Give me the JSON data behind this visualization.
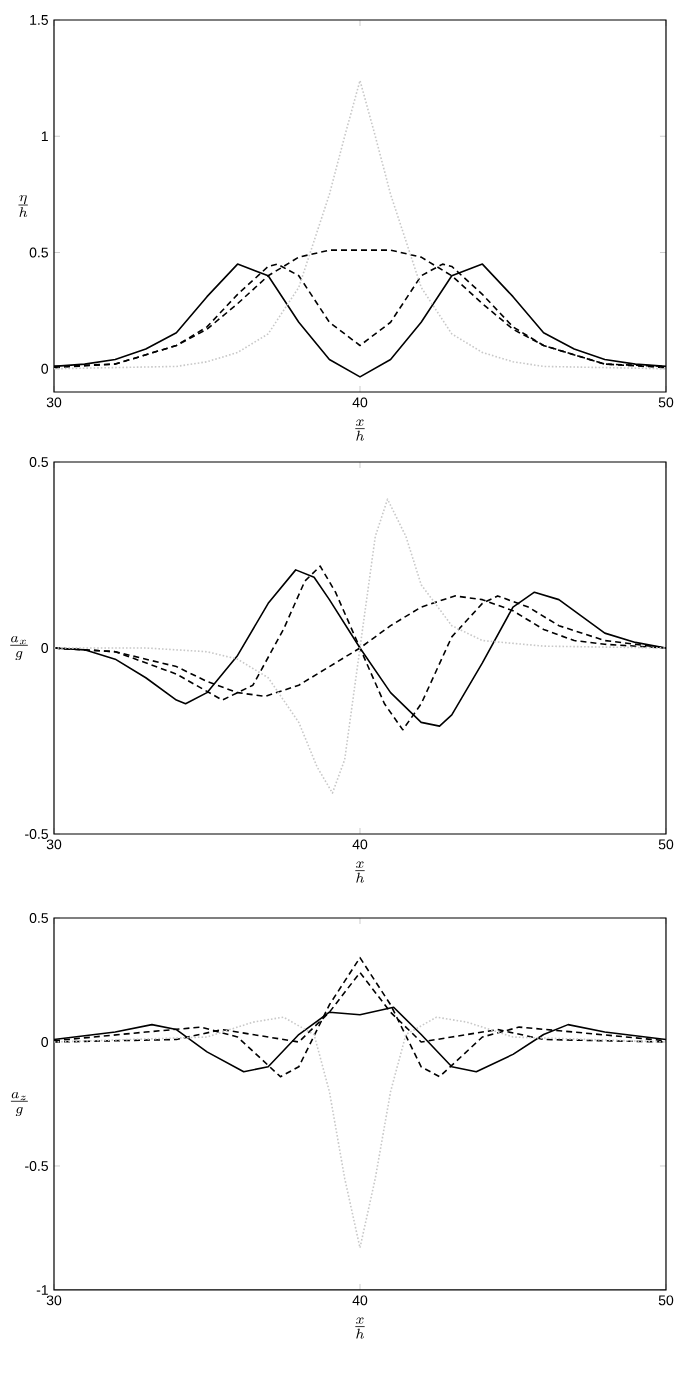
{
  "chart_data": [
    {
      "type": "line",
      "xlabel": "\\frac{x}{h}",
      "ylabel": "\\frac{\\eta}{h}",
      "xlim": [
        30,
        50
      ],
      "ylim": [
        -0.1,
        1.5
      ],
      "xticks": [
        30,
        40,
        50
      ],
      "yticks": [
        0,
        0.5,
        1,
        1.5
      ],
      "series": [
        {
          "color": "#000000",
          "line_style": "solid",
          "x": [
            30,
            31,
            32,
            33,
            34,
            35,
            36,
            37,
            38,
            39,
            40,
            41,
            42,
            43,
            44,
            45,
            46,
            47,
            48,
            49,
            50
          ],
          "values": [
            0.01,
            0.02,
            0.04,
            0.085,
            0.155,
            0.31,
            0.45,
            0.4,
            0.2,
            0.04,
            -0.035,
            0.04,
            0.2,
            0.4,
            0.45,
            0.31,
            0.155,
            0.085,
            0.04,
            0.02,
            0.01
          ]
        },
        {
          "color": "#000000",
          "line_style": "dashed",
          "x": [
            30,
            32,
            34,
            35,
            36,
            37,
            37.3,
            38,
            39,
            40,
            41,
            42,
            42.7,
            43,
            44,
            45,
            46,
            48,
            50
          ],
          "values": [
            0.01,
            0.02,
            0.1,
            0.18,
            0.32,
            0.44,
            0.45,
            0.4,
            0.2,
            0.1,
            0.2,
            0.4,
            0.45,
            0.44,
            0.32,
            0.18,
            0.1,
            0.02,
            0.01
          ]
        },
        {
          "color": "#000000",
          "line_style": "dashed",
          "x": [
            30,
            32,
            34,
            35,
            36,
            37,
            38,
            39,
            40,
            41,
            42,
            43,
            44,
            45,
            46,
            48,
            50
          ],
          "values": [
            0.005,
            0.02,
            0.1,
            0.17,
            0.28,
            0.4,
            0.48,
            0.51,
            0.51,
            0.51,
            0.48,
            0.4,
            0.28,
            0.17,
            0.1,
            0.02,
            0.005
          ]
        },
        {
          "color": "#c8c8c8",
          "line_style": "dotted",
          "x": [
            30,
            34,
            35,
            36,
            37,
            38,
            39,
            39.5,
            40,
            40.5,
            41,
            42,
            43,
            44,
            45,
            46,
            50
          ],
          "values": [
            0,
            0.01,
            0.03,
            0.07,
            0.15,
            0.35,
            0.75,
            1.0,
            1.24,
            1.0,
            0.75,
            0.35,
            0.15,
            0.07,
            0.03,
            0.01,
            0
          ]
        }
      ]
    },
    {
      "type": "line",
      "xlabel": "\\frac{x}{h}",
      "ylabel": "\\frac{a_x}{g}",
      "xlim": [
        30,
        50
      ],
      "ylim": [
        -0.5,
        0.5
      ],
      "xticks": [
        30,
        40,
        50
      ],
      "yticks": [
        -0.5,
        0,
        0.5
      ],
      "series": [
        {
          "color": "#000000",
          "line_style": "solid",
          "x": [
            30,
            31,
            32,
            33,
            34,
            34.3,
            35,
            36,
            37,
            37.9,
            38.5,
            39,
            40,
            41,
            42,
            42.6,
            43,
            44,
            45,
            45.7,
            46.5,
            47,
            48,
            49,
            50
          ],
          "values": [
            0,
            -0.005,
            -0.03,
            -0.08,
            -0.14,
            -0.15,
            -0.12,
            -0.02,
            0.12,
            0.21,
            0.19,
            0.13,
            0,
            -0.12,
            -0.2,
            -0.21,
            -0.18,
            -0.04,
            0.11,
            0.15,
            0.13,
            0.1,
            0.04,
            0.015,
            0
          ]
        },
        {
          "color": "#000000",
          "line_style": "dashed",
          "x": [
            30,
            32,
            34,
            35.5,
            36.5,
            37.5,
            38.2,
            38.7,
            39.2,
            40,
            40.8,
            41.4,
            42,
            43,
            44,
            44.5,
            45.5,
            46.5,
            48,
            50
          ],
          "values": [
            0,
            -0.01,
            -0.07,
            -0.14,
            -0.1,
            0.05,
            0.18,
            0.22,
            0.15,
            0,
            -0.15,
            -0.22,
            -0.15,
            0.03,
            0.12,
            0.14,
            0.11,
            0.06,
            0.02,
            0
          ]
        },
        {
          "color": "#000000",
          "line_style": "dashed",
          "x": [
            30,
            32,
            34,
            35,
            36,
            36.9,
            38,
            39,
            40,
            41,
            42,
            43.1,
            44,
            45,
            46,
            47,
            48,
            50
          ],
          "values": [
            0,
            -0.01,
            -0.05,
            -0.09,
            -0.12,
            -0.13,
            -0.1,
            -0.05,
            0,
            0.06,
            0.11,
            0.14,
            0.13,
            0.1,
            0.05,
            0.02,
            0.01,
            0
          ]
        },
        {
          "color": "#c8c8c8",
          "line_style": "dotted",
          "x": [
            30,
            33,
            35,
            36,
            37,
            38,
            38.6,
            39.1,
            39.5,
            40,
            40.5,
            40.9,
            41.5,
            42,
            43,
            44,
            46,
            50
          ],
          "values": [
            0,
            0,
            -0.01,
            -0.03,
            -0.08,
            -0.2,
            -0.32,
            -0.39,
            -0.3,
            0,
            0.3,
            0.4,
            0.3,
            0.17,
            0.06,
            0.02,
            0.005,
            0
          ]
        }
      ]
    },
    {
      "type": "line",
      "xlabel": "\\frac{x}{h}",
      "ylabel": "\\frac{a_z}{g}",
      "xlim": [
        30,
        50
      ],
      "ylim": [
        -1,
        0.5
      ],
      "xticks": [
        30,
        40,
        50
      ],
      "yticks": [
        -1,
        -0.5,
        0,
        0.5
      ],
      "series": [
        {
          "color": "#000000",
          "line_style": "solid",
          "x": [
            30,
            32,
            33.2,
            34,
            35,
            36.2,
            37,
            38,
            39,
            40,
            41.1,
            42,
            43,
            43.8,
            45,
            46,
            46.8,
            48,
            50
          ],
          "values": [
            0.01,
            0.04,
            0.07,
            0.05,
            -0.04,
            -0.12,
            -0.1,
            0.03,
            0.12,
            0.11,
            0.14,
            0.03,
            -0.1,
            -0.12,
            -0.05,
            0.03,
            0.07,
            0.04,
            0.01
          ]
        },
        {
          "color": "#000000",
          "line_style": "dashed",
          "x": [
            30,
            33,
            34.8,
            36,
            37.4,
            38,
            39,
            40,
            41,
            42,
            42.6,
            44,
            45.2,
            47,
            50
          ],
          "values": [
            0.005,
            0.04,
            0.06,
            0.02,
            -0.14,
            -0.1,
            0.15,
            0.34,
            0.15,
            -0.1,
            -0.14,
            0.02,
            0.06,
            0.04,
            0.005
          ]
        },
        {
          "color": "#000000",
          "line_style": "dashed",
          "x": [
            30,
            34,
            35.5,
            37,
            38,
            39,
            40,
            41,
            42,
            43,
            44.5,
            46,
            50
          ],
          "values": [
            0,
            0.01,
            0.05,
            0.02,
            0,
            0.12,
            0.28,
            0.12,
            0,
            0.02,
            0.05,
            0.01,
            0
          ]
        },
        {
          "color": "#c8c8c8",
          "line_style": "dotted",
          "x": [
            30,
            35,
            36.5,
            37.5,
            38.5,
            39,
            39.5,
            40,
            40.5,
            41,
            41.5,
            42.5,
            43.5,
            45,
            50
          ],
          "values": [
            0,
            0.02,
            0.08,
            0.1,
            0.03,
            -0.2,
            -0.55,
            -0.83,
            -0.55,
            -0.2,
            0.03,
            0.1,
            0.08,
            0.02,
            0
          ]
        }
      ]
    }
  ]
}
